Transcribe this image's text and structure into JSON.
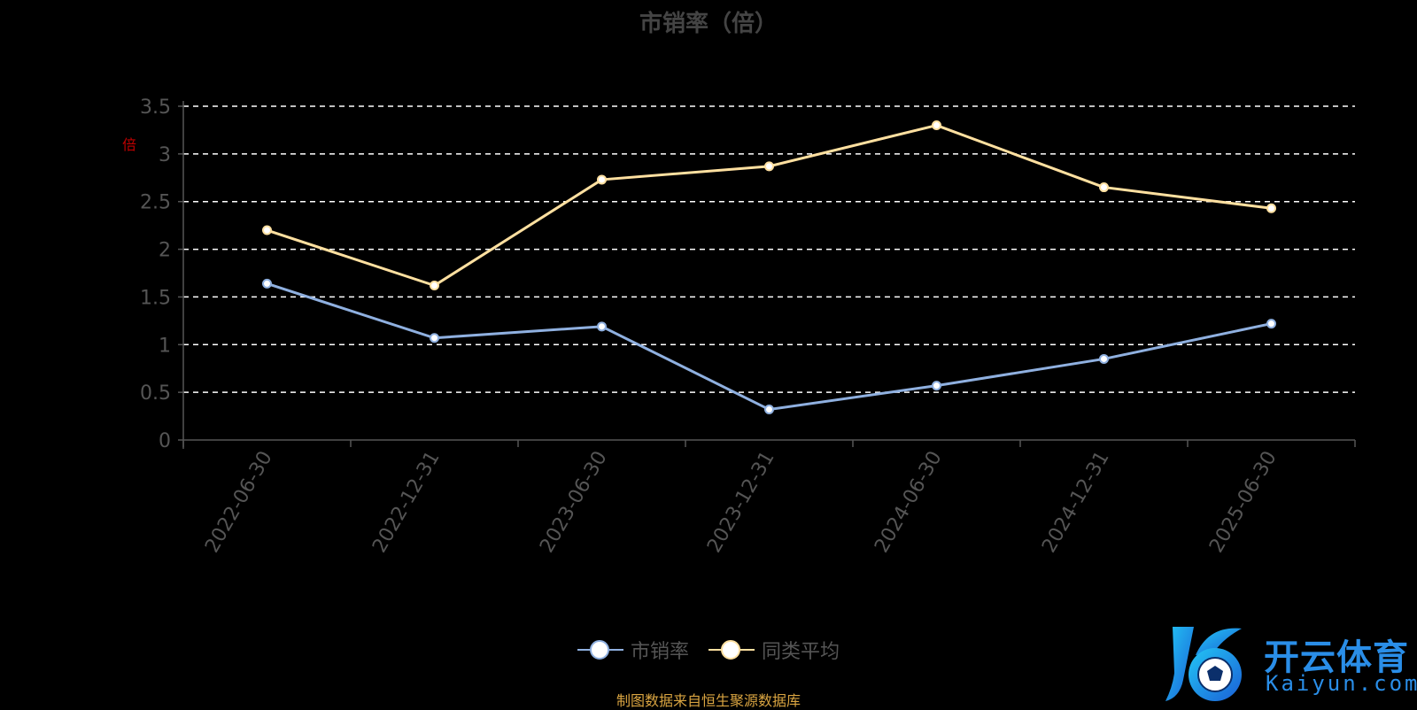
{
  "chart_data": {
    "type": "line",
    "title": "市销率（倍）",
    "unit_label": "倍",
    "categories": [
      "2022-06-30",
      "2022-12-31",
      "2023-06-30",
      "2023-12-31",
      "2024-06-30",
      "2024-12-31",
      "2025-06-30"
    ],
    "series": [
      {
        "name": "市销率",
        "values": [
          1.64,
          1.07,
          1.19,
          0.32,
          0.57,
          0.85,
          1.22
        ],
        "color": "#8fb0e0"
      },
      {
        "name": "同类平均",
        "values": [
          2.2,
          1.62,
          2.73,
          2.87,
          3.3,
          2.65,
          2.43
        ],
        "color": "#ffe0a0"
      }
    ],
    "ylim": [
      0,
      3.5
    ],
    "yticks": [
      "0",
      "0.5",
      "1",
      "1.5",
      "2",
      "2.5",
      "3",
      "3.5"
    ],
    "grid": true,
    "legend_position": "bottom"
  },
  "source_text": "制图数据来自恒生聚源数据库",
  "watermark": {
    "cn": "开云体育",
    "en": "Kaiyun.com"
  },
  "colors": {
    "background": "#000000",
    "grid": "#ffffff",
    "axis": "#555555",
    "source": "#d9a441",
    "watermark": "#2a8ee8"
  }
}
